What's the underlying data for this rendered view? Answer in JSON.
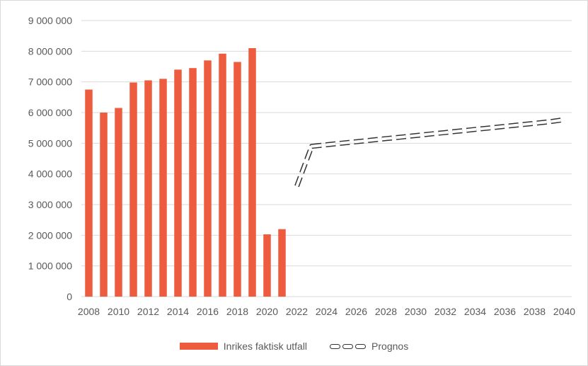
{
  "chart_data": {
    "type": "bar",
    "title": "",
    "xlabel": "",
    "ylabel": "",
    "ylim": [
      0,
      9000000
    ],
    "y_ticks": [
      0,
      1000000,
      2000000,
      3000000,
      4000000,
      5000000,
      6000000,
      7000000,
      8000000,
      9000000
    ],
    "y_tick_labels": [
      "0",
      "1 000 000",
      "2 000 000",
      "3 000 000",
      "4 000 000",
      "5 000 000",
      "6 000 000",
      "7 000 000",
      "8 000 000",
      "9 000 000"
    ],
    "x_range": [
      2008,
      2040
    ],
    "x_tick_labels": [
      "2008",
      "2010",
      "2012",
      "2014",
      "2016",
      "2018",
      "2020",
      "2022",
      "2024",
      "2026",
      "2028",
      "2030",
      "2032",
      "2034",
      "2036",
      "2038",
      "2040"
    ],
    "grid": "horizontal",
    "legend_position": "bottom",
    "series": [
      {
        "name": "Inrikes faktisk utfall",
        "type": "bar",
        "color": "#ed5c3e",
        "x": [
          2008,
          2009,
          2010,
          2011,
          2012,
          2013,
          2014,
          2015,
          2016,
          2017,
          2018,
          2019,
          2020,
          2021
        ],
        "values": [
          6750000,
          6000000,
          6150000,
          6980000,
          7050000,
          7100000,
          7400000,
          7450000,
          7700000,
          7920000,
          7650000,
          8100000,
          2030000,
          2200000
        ]
      },
      {
        "name": "Prognos",
        "type": "line",
        "style": "dashed-outline",
        "color": "#333333",
        "x": [
          2022,
          2023,
          2024,
          2025,
          2026,
          2027,
          2028,
          2029,
          2030,
          2031,
          2032,
          2033,
          2034,
          2035,
          2036,
          2037,
          2038,
          2039,
          2040
        ],
        "values": [
          3600000,
          4900000,
          4950000,
          5000000,
          5050000,
          5100000,
          5150000,
          5200000,
          5250000,
          5300000,
          5350000,
          5400000,
          5450000,
          5500000,
          5550000,
          5600000,
          5650000,
          5700000,
          5770000
        ]
      }
    ]
  },
  "legend": {
    "bar_label": "Inrikes faktisk utfall",
    "line_label": "Prognos"
  }
}
